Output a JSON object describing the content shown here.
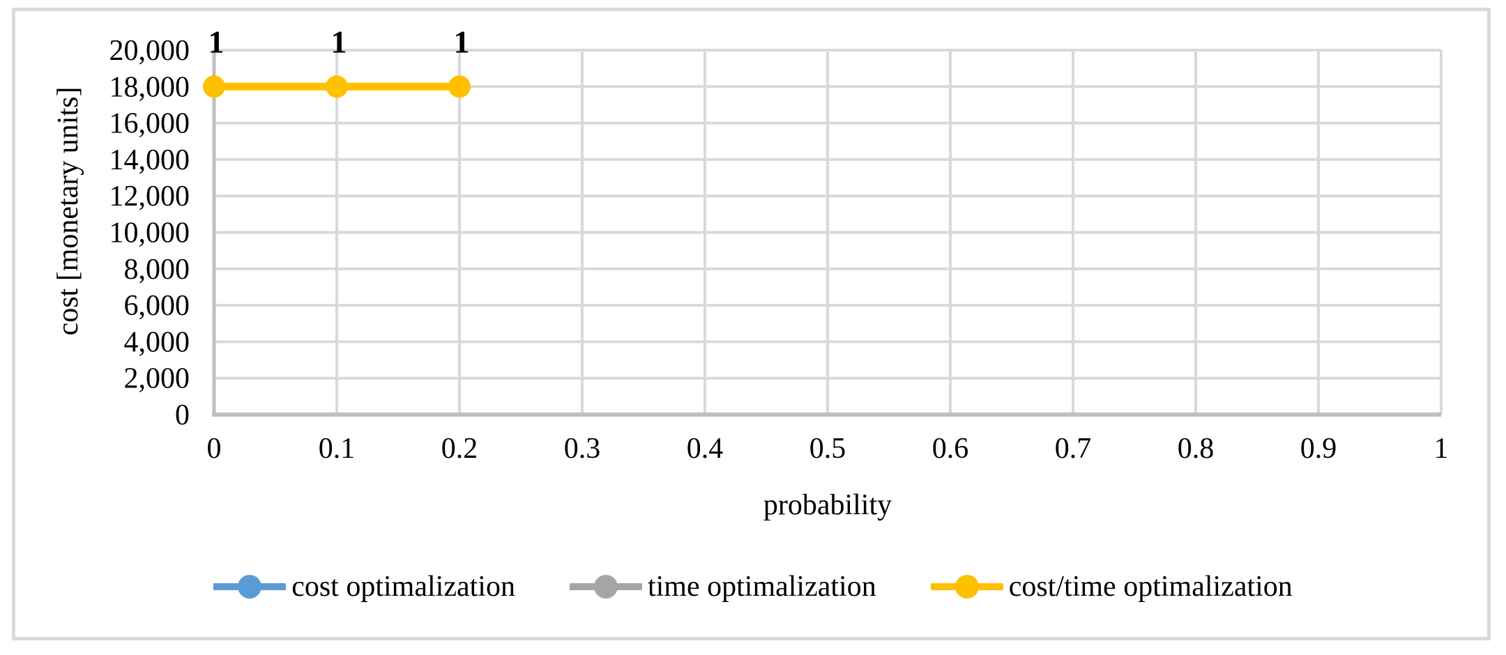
{
  "figure": {
    "background": "#FFFFFF",
    "border_color": "#D9D9D9"
  },
  "styles": {
    "gridline_color": "#D9D9D9",
    "axis_line_color": "#BFBFBF",
    "text_color": "#000000"
  },
  "chart_data": {
    "type": "line",
    "title": "",
    "xlabel": "probability",
    "ylabel": "cost [monetary units]",
    "xlim": [
      0,
      1
    ],
    "ylim": [
      0,
      20000
    ],
    "grid": true,
    "legend_position": "bottom",
    "x_tick_values": [
      0,
      0.1,
      0.2,
      0.3,
      0.4,
      0.5,
      0.6,
      0.7,
      0.8,
      0.9,
      1
    ],
    "x_tick_labels": [
      "0",
      "0.1",
      "0.2",
      "0.3",
      "0.4",
      "0.5",
      "0.6",
      "0.7",
      "0.8",
      "0.9",
      "1"
    ],
    "y_tick_values": [
      0,
      2000,
      4000,
      6000,
      8000,
      10000,
      12000,
      14000,
      16000,
      18000,
      20000
    ],
    "y_tick_labels": [
      "0",
      "2,000",
      "4,000",
      "6,000",
      "8,000",
      "10,000",
      "12,000",
      "14,000",
      "16,000",
      "18,000",
      "20,000"
    ],
    "series": [
      {
        "name": "cost optimalization",
        "color": "#5B9BD5",
        "x": [],
        "y": [],
        "data_labels": [],
        "visible": "legend-only"
      },
      {
        "name": "time optimalization",
        "color": "#A5A5A5",
        "x": [],
        "y": [],
        "data_labels": [],
        "visible": "legend-only"
      },
      {
        "name": "cost/time optimalization",
        "color": "#FFC000",
        "x": [
          0,
          0.1,
          0.2
        ],
        "y": [
          18000,
          18000,
          18000
        ],
        "data_labels": [
          "1",
          "1",
          "1"
        ],
        "visible": "plotted"
      }
    ]
  }
}
